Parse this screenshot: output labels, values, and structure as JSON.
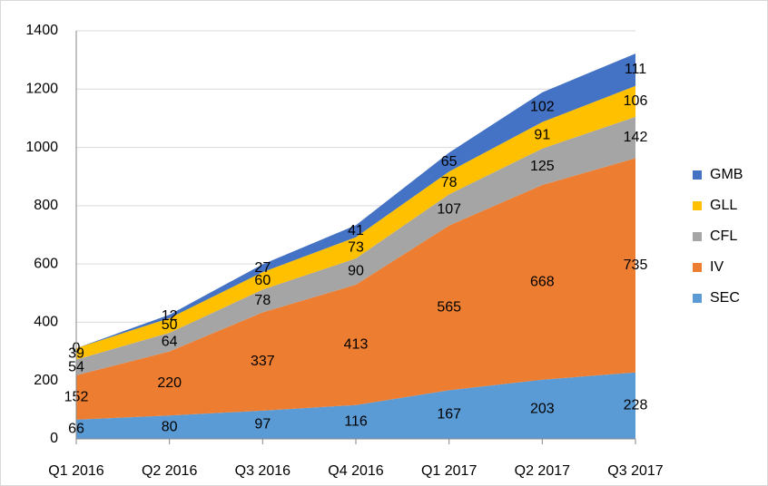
{
  "chart_data": {
    "type": "stacked-area",
    "categories": [
      "Q1 2016",
      "Q2 2016",
      "Q3 2016",
      "Q4 2016",
      "Q1 2017",
      "Q2 2017",
      "Q3 2017"
    ],
    "series": [
      {
        "name": "SEC",
        "color": "#5b9bd5",
        "values": [
          66,
          80,
          97,
          116,
          167,
          203,
          228
        ]
      },
      {
        "name": "IV",
        "color": "#ed7d31",
        "values": [
          152,
          220,
          337,
          413,
          565,
          668,
          735
        ]
      },
      {
        "name": "CFL",
        "color": "#a5a5a5",
        "values": [
          54,
          64,
          78,
          90,
          107,
          125,
          142
        ]
      },
      {
        "name": "GLL",
        "color": "#ffc000",
        "values": [
          39,
          50,
          60,
          73,
          78,
          91,
          106
        ]
      },
      {
        "name": "GMB",
        "color": "#4472c4",
        "values": [
          0,
          12,
          27,
          41,
          65,
          102,
          111
        ]
      }
    ],
    "ylim": [
      0,
      1400
    ],
    "yticks": [
      0,
      200,
      400,
      600,
      800,
      1000,
      1200,
      1400
    ],
    "grid": true
  }
}
